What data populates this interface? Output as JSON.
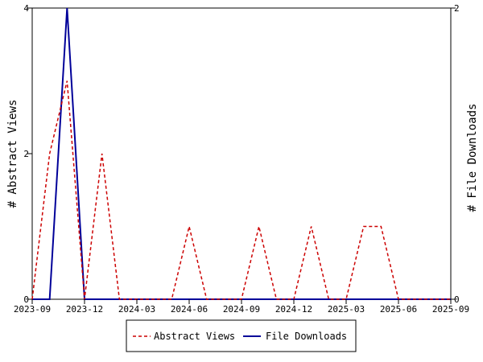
{
  "chart_data": {
    "type": "line",
    "title": "",
    "x_ticks": [
      "2023-09",
      "2023-12",
      "2024-03",
      "2024-06",
      "2024-09",
      "2024-12",
      "2025-03",
      "2025-06",
      "2025-09"
    ],
    "xlim": [
      "2023-09",
      "2025-09"
    ],
    "ylabel_left": "# Abstract Views",
    "ylabel_right": "# File Downloads",
    "ylim_left": [
      0,
      4
    ],
    "ylim_right": [
      0,
      2
    ],
    "y_ticks_left": [
      "0",
      "2",
      "4"
    ],
    "y_ticks_right": [
      "0",
      "2"
    ],
    "legend_placement": "bottom-center",
    "series": [
      {
        "name": "Abstract Views",
        "axis": "left",
        "color": "#cc0000",
        "style": "dashed",
        "points": [
          [
            "2023-09",
            0
          ],
          [
            "2023-10",
            2
          ],
          [
            "2023-11",
            3
          ],
          [
            "2023-12",
            0
          ],
          [
            "2024-01",
            2
          ],
          [
            "2024-02",
            0
          ],
          [
            "2024-03",
            0
          ],
          [
            "2024-04",
            0
          ],
          [
            "2024-05",
            0
          ],
          [
            "2024-06",
            1
          ],
          [
            "2024-07",
            0
          ],
          [
            "2024-08",
            0
          ],
          [
            "2024-09",
            0
          ],
          [
            "2024-10",
            1
          ],
          [
            "2024-11",
            0
          ],
          [
            "2024-12",
            0
          ],
          [
            "2025-01",
            1
          ],
          [
            "2025-02",
            0
          ],
          [
            "2025-03",
            0
          ],
          [
            "2025-04",
            1
          ],
          [
            "2025-05",
            1
          ],
          [
            "2025-06",
            0
          ],
          [
            "2025-07",
            0
          ],
          [
            "2025-08",
            0
          ],
          [
            "2025-09",
            0
          ]
        ]
      },
      {
        "name": "File Downloads",
        "axis": "right",
        "color": "#000099",
        "style": "solid",
        "points": [
          [
            "2023-09",
            0
          ],
          [
            "2023-10",
            0
          ],
          [
            "2023-11",
            2
          ],
          [
            "2023-12",
            0
          ],
          [
            "2024-01",
            0
          ],
          [
            "2024-02",
            0
          ],
          [
            "2024-03",
            0
          ],
          [
            "2024-04",
            0
          ],
          [
            "2024-05",
            0
          ],
          [
            "2024-06",
            0
          ],
          [
            "2024-07",
            0
          ],
          [
            "2024-08",
            0
          ],
          [
            "2024-09",
            0
          ],
          [
            "2024-10",
            0
          ],
          [
            "2024-11",
            0
          ],
          [
            "2024-12",
            0
          ],
          [
            "2025-01",
            0
          ],
          [
            "2025-02",
            0
          ],
          [
            "2025-03",
            0
          ],
          [
            "2025-04",
            0
          ],
          [
            "2025-05",
            0
          ],
          [
            "2025-06",
            0
          ],
          [
            "2025-07",
            0
          ],
          [
            "2025-08",
            0
          ],
          [
            "2025-09",
            0
          ]
        ]
      }
    ]
  }
}
